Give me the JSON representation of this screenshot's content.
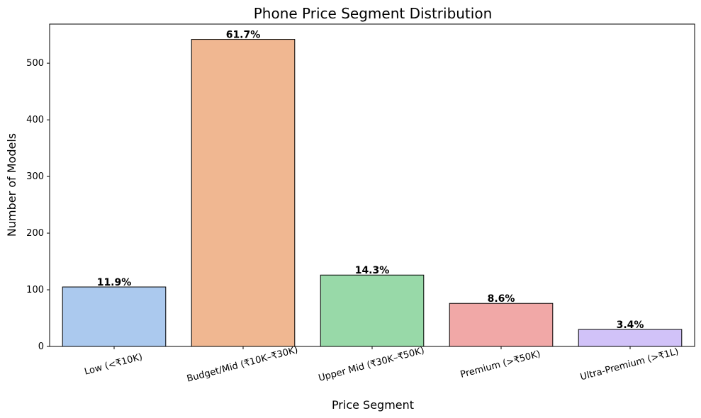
{
  "chart_data": {
    "type": "bar",
    "title": "Phone Price Segment Distribution",
    "xlabel": "Price Segment",
    "ylabel": "Number of Models",
    "categories": [
      "Low (<₹10K)",
      "Budget/Mid (₹10K–₹30K)",
      "Upper Mid (₹30K–₹50K)",
      "Premium (>₹50K)",
      "Ultra-Premium (>₹1L)"
    ],
    "values": [
      105,
      542,
      126,
      76,
      30
    ],
    "data_labels": [
      "11.9%",
      "61.7%",
      "14.3%",
      "8.6%",
      "3.4%"
    ],
    "colors": [
      "#abc9ee",
      "#f0b791",
      "#98d9a8",
      "#f1a8a7",
      "#d1c2f8"
    ],
    "yticks": [
      0,
      100,
      200,
      300,
      400,
      500
    ],
    "ylim": [
      0,
      569
    ],
    "grid": false,
    "legend": "none"
  }
}
